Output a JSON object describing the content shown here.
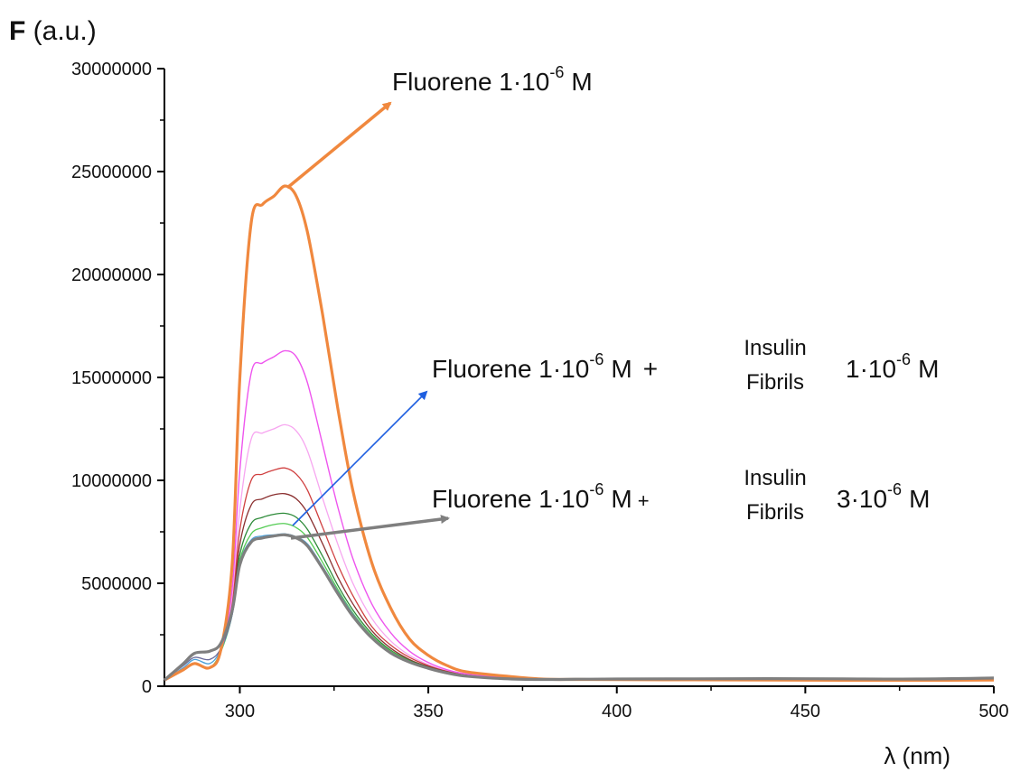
{
  "chart_data": {
    "type": "line",
    "title": "",
    "ylabel_bold": "F",
    "ylabel_rest": " (a.u.)",
    "xlabel": "λ (nm)",
    "xlim": [
      280,
      500
    ],
    "ylim": [
      0,
      30000000
    ],
    "grid": false,
    "x_ticks": [
      300,
      350,
      400,
      450,
      500
    ],
    "y_ticks": [
      0,
      5000000,
      10000000,
      15000000,
      20000000,
      25000000,
      30000000
    ],
    "x_tick_labels": [
      "300",
      "350",
      "400",
      "450",
      "500"
    ],
    "y_tick_labels": [
      "0",
      "5000000",
      "10000000",
      "15000000",
      "20000000",
      "25000000",
      "30000000"
    ],
    "x": [
      280,
      285,
      288,
      292,
      295,
      298,
      300,
      303,
      306,
      309,
      312,
      315,
      318,
      322,
      326,
      330,
      335,
      340,
      345,
      350,
      355,
      360,
      370,
      380,
      390,
      400,
      420,
      440,
      460,
      480,
      500
    ],
    "series": [
      {
        "color": "#f0883e",
        "width": 3.2,
        "values": [
          300000,
          800000,
          1100000,
          900000,
          1800000,
          6000000,
          15000000,
          22500000,
          23400000,
          23800000,
          24300000,
          23800000,
          22000000,
          18000000,
          13500000,
          9500000,
          6000000,
          3800000,
          2300000,
          1500000,
          1000000,
          700000,
          500000,
          350000,
          330000,
          320000,
          310000,
          300000,
          290000,
          290000,
          300000
        ]
      },
      {
        "color": "#ee55ee",
        "width": 1.4,
        "values": [
          300000,
          800000,
          1100000,
          900000,
          1700000,
          4800000,
          10500000,
          15200000,
          15700000,
          16000000,
          16300000,
          16000000,
          14700000,
          11700000,
          8700000,
          6200000,
          4000000,
          2600000,
          1700000,
          1150000,
          800000,
          600000,
          420000,
          330000,
          320000,
          320000,
          320000,
          320000,
          310000,
          300000,
          310000
        ]
      },
      {
        "color": "#f7a6f0",
        "width": 1.3,
        "values": [
          300000,
          800000,
          1100000,
          900000,
          1700000,
          4300000,
          8600000,
          12000000,
          12300000,
          12500000,
          12700000,
          12400000,
          11400000,
          9100000,
          6900000,
          5000000,
          3300000,
          2200000,
          1500000,
          1050000,
          750000,
          560000,
          400000,
          330000,
          320000,
          320000,
          330000,
          330000,
          320000,
          310000,
          320000
        ]
      },
      {
        "color": "#d04040",
        "width": 1.3,
        "values": [
          300000,
          800000,
          1100000,
          900000,
          1700000,
          4000000,
          7600000,
          10000000,
          10300000,
          10500000,
          10600000,
          10300000,
          9500000,
          7700000,
          5900000,
          4400000,
          2900000,
          2000000,
          1400000,
          1000000,
          720000,
          540000,
          390000,
          330000,
          320000,
          330000,
          340000,
          340000,
          330000,
          320000,
          350000
        ]
      },
      {
        "color": "#8b3030",
        "width": 1.3,
        "values": [
          300000,
          800000,
          1100000,
          900000,
          1700000,
          3800000,
          6900000,
          8800000,
          9100000,
          9300000,
          9350000,
          9100000,
          8400000,
          6900000,
          5300000,
          4000000,
          2700000,
          1850000,
          1300000,
          950000,
          700000,
          530000,
          390000,
          330000,
          330000,
          340000,
          350000,
          350000,
          340000,
          330000,
          360000
        ]
      },
      {
        "color": "#2e8b3a",
        "width": 1.3,
        "values": [
          300000,
          800000,
          1100000,
          900000,
          1700000,
          3600000,
          6400000,
          7900000,
          8200000,
          8350000,
          8400000,
          8200000,
          7600000,
          6300000,
          4900000,
          3700000,
          2550000,
          1750000,
          1250000,
          920000,
          680000,
          520000,
          390000,
          340000,
          340000,
          350000,
          360000,
          360000,
          350000,
          340000,
          380000
        ]
      },
      {
        "color": "#55cc55",
        "width": 1.3,
        "values": [
          300000,
          800000,
          1100000,
          900000,
          1700000,
          3500000,
          6100000,
          7400000,
          7700000,
          7850000,
          7900000,
          7700000,
          7200000,
          6000000,
          4700000,
          3550000,
          2450000,
          1700000,
          1220000,
          900000,
          670000,
          510000,
          390000,
          340000,
          340000,
          350000,
          370000,
          370000,
          360000,
          350000,
          390000
        ]
      },
      {
        "color": "#4aa0d8",
        "width": 1.3,
        "values": [
          300000,
          900000,
          1300000,
          1100000,
          1800000,
          3500000,
          6000000,
          7100000,
          7300000,
          7350000,
          7400000,
          7250000,
          6900000,
          5800000,
          4600000,
          3500000,
          2400000,
          1650000,
          1200000,
          890000,
          660000,
          500000,
          380000,
          340000,
          350000,
          360000,
          380000,
          380000,
          370000,
          360000,
          400000
        ]
      },
      {
        "color": "#6b6b9a",
        "width": 1.3,
        "values": [
          300000,
          1000000,
          1400000,
          1300000,
          1850000,
          3500000,
          5900000,
          7000000,
          7200000,
          7300000,
          7350000,
          7200000,
          6850000,
          5750000,
          4550000,
          3450000,
          2380000,
          1640000,
          1190000,
          880000,
          650000,
          500000,
          380000,
          340000,
          350000,
          360000,
          380000,
          390000,
          370000,
          360000,
          410000
        ]
      },
      {
        "color": "#7f7f7f",
        "width": 3.2,
        "values": [
          300000,
          1100000,
          1600000,
          1700000,
          2100000,
          3700000,
          5900000,
          7000000,
          7200000,
          7300000,
          7350000,
          7200000,
          6800000,
          5700000,
          4500000,
          3400000,
          2350000,
          1620000,
          1170000,
          870000,
          640000,
          490000,
          370000,
          330000,
          340000,
          350000,
          360000,
          370000,
          360000,
          350000,
          400000
        ]
      }
    ],
    "annotations": [
      {
        "label": "Fluorene 1·10",
        "exp": "-6",
        "unit": "M"
      },
      {
        "label": "Fluorene 1·10",
        "exp": "-6",
        "unit": "M",
        "plus": "+",
        "line1": "Insulin",
        "line2": "Fibrils",
        "conc": "1·10",
        "conc_exp": "-6",
        "conc_unit": "M"
      },
      {
        "label": "Fluorene 1·10",
        "exp": "-6",
        "unit": "M",
        "plus": "+",
        "line1": "Insulin",
        "line2": "Fibrils",
        "conc": "3·10",
        "conc_exp": "-6",
        "conc_unit": "M"
      }
    ],
    "arrow_colors": [
      "#f0883e",
      "#1f5fe0",
      "#7f7f7f"
    ]
  }
}
